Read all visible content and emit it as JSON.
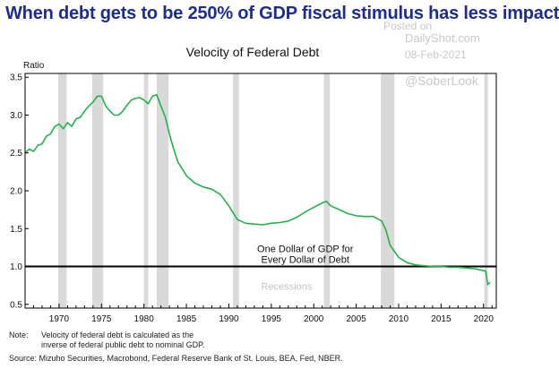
{
  "headline": "When debt gets to be 250% of GDP fiscal stimulus has less impact",
  "watermark": {
    "posted": "Posted on",
    "site": "DailyShot.com",
    "date": "08-Feb-2021",
    "handle": "@SoberLook"
  },
  "footer": {
    "note_label": "Note:",
    "note_text": "Velocity of federal debt is calculated as the inverse of federal public debt to nominal GDP.",
    "source": "Source: Mizuho Securities, Macrobond, Federal Reserve Bank of St. Louis, BEA, Fed, NBER."
  },
  "chart_data": {
    "type": "line",
    "title": "Velocity of Federal Debt",
    "ylabel": "Ratio",
    "xlim": [
      1966,
      2021.5
    ],
    "ylim": [
      0.45,
      3.55
    ],
    "xticks": [
      1970,
      1975,
      1980,
      1985,
      1990,
      1995,
      2000,
      2005,
      2010,
      2015,
      2020
    ],
    "yticks": [
      "0.5",
      "1.0",
      "1.5",
      "2.0",
      "2.5",
      "3.0",
      "3.5"
    ],
    "line_color": "#22b34a",
    "recession_color": "#d9d9d9",
    "recessions": [
      [
        1969.9,
        1970.9
      ],
      [
        1973.9,
        1975.2
      ],
      [
        1980.0,
        1980.5
      ],
      [
        1981.5,
        1982.9
      ],
      [
        1990.5,
        1991.2
      ],
      [
        2001.2,
        2001.9
      ],
      [
        2007.9,
        2009.5
      ],
      [
        2020.1,
        2020.5
      ]
    ],
    "recessions_label": "Recessions",
    "reference_line": {
      "y": 1.0,
      "label": "One Dollar of GDP for Every Dollar of Debt"
    },
    "series": [
      {
        "x": [
          1966.0,
          1966.5,
          1967.0,
          1967.5,
          1968.0,
          1968.5,
          1969.0,
          1969.5,
          1970.0,
          1970.5,
          1971.0,
          1971.5,
          1972.0,
          1972.5,
          1973.0,
          1973.5,
          1974.0,
          1974.5,
          1975.0,
          1975.5,
          1976.0,
          1976.5,
          1977.0,
          1977.5,
          1978.0,
          1978.5,
          1979.0,
          1979.5,
          1980.0,
          1980.5,
          1981.0,
          1981.5,
          1982.0,
          1982.5,
          1983.0,
          1983.5,
          1984.0,
          1985.0,
          1986.0,
          1987.0,
          1988.0,
          1989.0,
          1990.0,
          1991.0,
          1992.0,
          1993.0,
          1994.0,
          1995.0,
          1996.0,
          1997.0,
          1998.0,
          1999.0,
          2000.0,
          2001.0,
          2001.5,
          2002.0,
          2003.0,
          2004.0,
          2005.0,
          2006.0,
          2007.0,
          2008.0,
          2008.5,
          2009.0,
          2009.5,
          2010.0,
          2011.0,
          2012.0,
          2013.0,
          2014.0,
          2015.0,
          2016.0,
          2017.0,
          2018.0,
          2019.0,
          2019.75,
          2020.25,
          2020.5,
          2020.75
        ],
        "values": [
          2.5,
          2.55,
          2.52,
          2.6,
          2.62,
          2.72,
          2.75,
          2.85,
          2.88,
          2.82,
          2.9,
          2.85,
          2.95,
          2.97,
          3.05,
          3.12,
          3.17,
          3.25,
          3.25,
          3.12,
          3.05,
          3.0,
          3.0,
          3.05,
          3.13,
          3.2,
          3.22,
          3.23,
          3.2,
          3.15,
          3.25,
          3.27,
          3.12,
          2.98,
          2.75,
          2.55,
          2.38,
          2.2,
          2.1,
          2.05,
          2.02,
          1.95,
          1.8,
          1.62,
          1.57,
          1.56,
          1.55,
          1.57,
          1.58,
          1.6,
          1.65,
          1.72,
          1.78,
          1.84,
          1.86,
          1.8,
          1.75,
          1.7,
          1.67,
          1.66,
          1.66,
          1.6,
          1.48,
          1.28,
          1.2,
          1.12,
          1.05,
          1.02,
          1.01,
          1.0,
          1.0,
          0.99,
          0.99,
          0.98,
          0.97,
          0.95,
          0.94,
          0.76,
          0.79
        ]
      }
    ]
  }
}
